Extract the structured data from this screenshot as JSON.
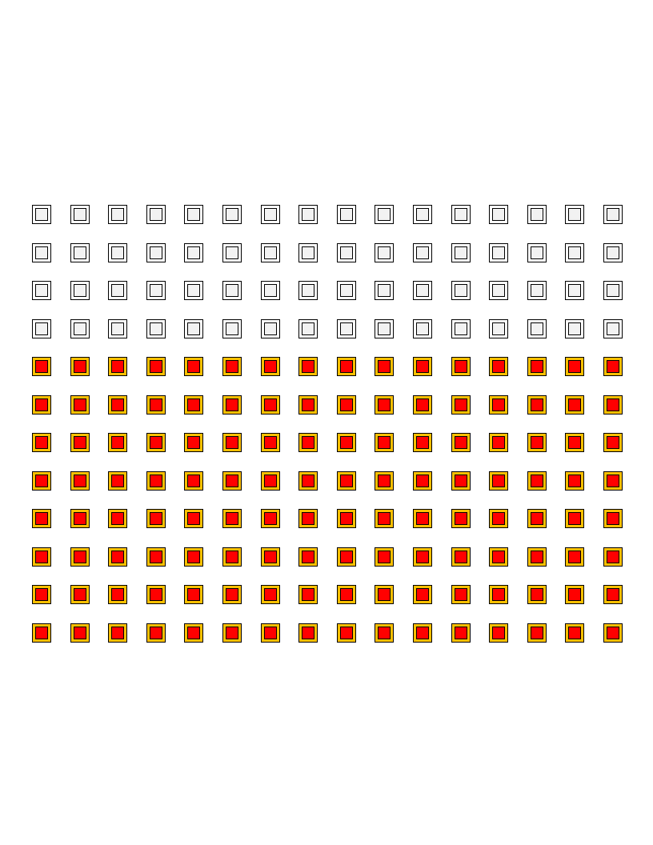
{
  "grid": {
    "columns": 16,
    "rows": [
      {
        "state": "empty"
      },
      {
        "state": "empty"
      },
      {
        "state": "empty"
      },
      {
        "state": "empty"
      },
      {
        "state": "filled"
      },
      {
        "state": "filled"
      },
      {
        "state": "filled"
      },
      {
        "state": "filled"
      },
      {
        "state": "filled"
      },
      {
        "state": "filled"
      },
      {
        "state": "filled"
      },
      {
        "state": "filled"
      }
    ],
    "empty_count": 64,
    "filled_count": 128
  },
  "colors": {
    "empty_outer": "#ffffff",
    "empty_inner": "#f2f2f2",
    "filled_outer": "#ffc000",
    "filled_inner": "#ff0000",
    "border": "#000000"
  }
}
